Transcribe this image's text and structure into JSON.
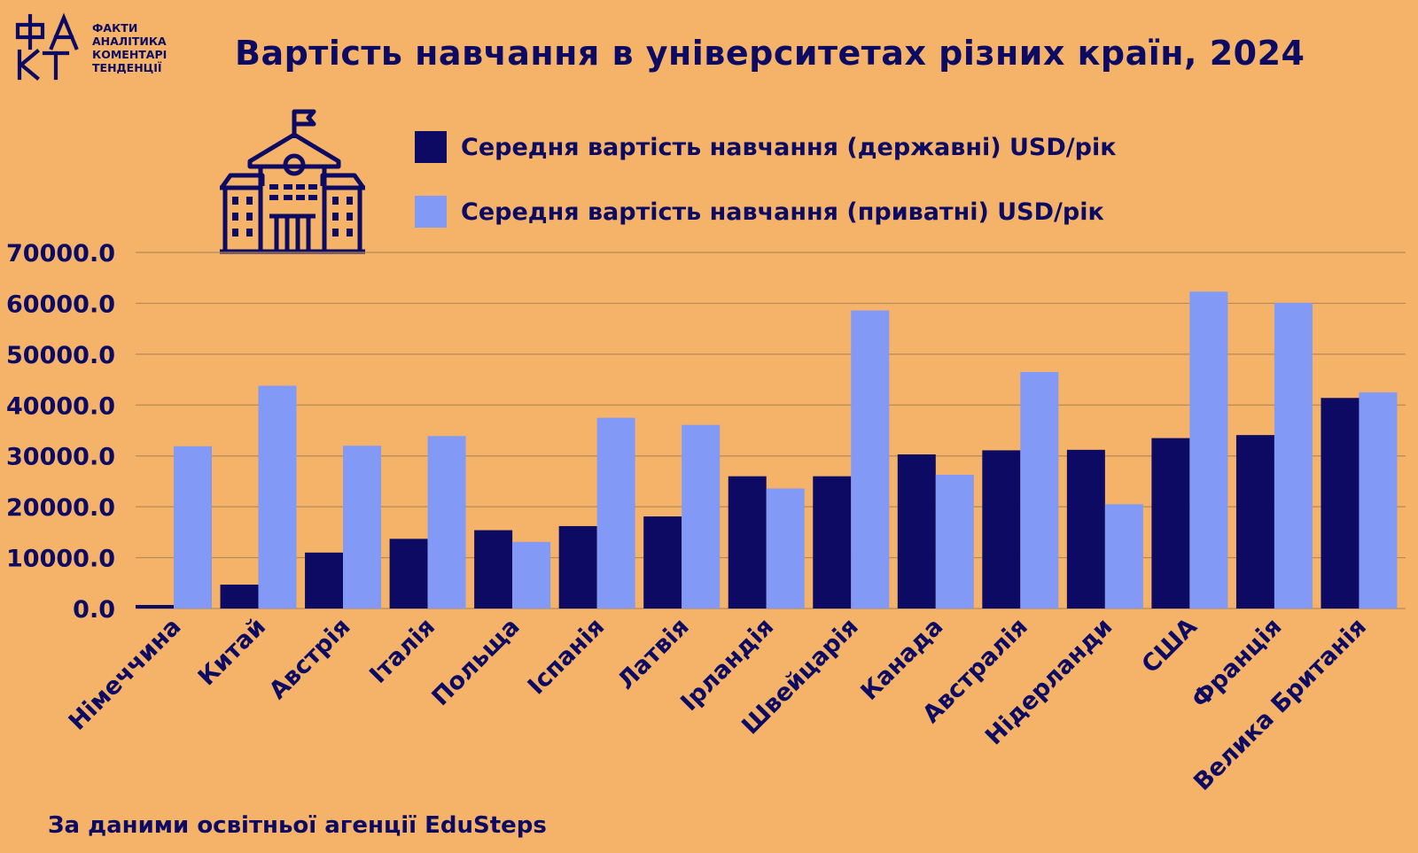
{
  "logo": {
    "mark": "ФАКТ",
    "lines": [
      "ФАКТИ",
      "АНАЛІТИКА",
      "КОМЕНТАРІ",
      "ТЕНДЕНЦІЇ"
    ]
  },
  "header": {
    "title": "Вартість навчання в університетах різних країн, 2024"
  },
  "icons": {
    "school": "school-building-icon"
  },
  "colors": {
    "background": "#F4B368",
    "public": "#0C0A63",
    "private": "#8299F5",
    "text": "#0C0A63",
    "grid": "#B58A59"
  },
  "source": "За даними освітньої агенції EduSteps",
  "chart_data": {
    "type": "bar",
    "title": "Вартість навчання в університетах різних країн, 2024",
    "xlabel": "",
    "ylabel": "",
    "ylim": [
      0,
      70000
    ],
    "yticks": [
      "0.0",
      "10000.0",
      "20000.0",
      "30000.0",
      "40000.0",
      "50000.0",
      "60000.0",
      "70000.0"
    ],
    "grid": true,
    "legend_position": "top",
    "categories": [
      "Німеччина",
      "Китай",
      "Австрія",
      "Італія",
      "Польща",
      "Іспанія",
      "Латвія",
      "Ірландія",
      "Швейцарія",
      "Канада",
      "Австралія",
      "Нідерланди",
      "США",
      "Франція",
      "Велика Британія"
    ],
    "series": [
      {
        "name": "Середня вартість навчання (державні) USD/рік",
        "color": "#0C0A63",
        "values": [
          700,
          4700,
          11000,
          13700,
          15400,
          16200,
          18100,
          26000,
          26000,
          30300,
          31100,
          31200,
          33500,
          34100,
          41400
        ]
      },
      {
        "name": "Середня вартість навчання (приватні) USD/рік",
        "color": "#8299F5",
        "values": [
          31900,
          43800,
          32000,
          33900,
          13100,
          37500,
          36100,
          23600,
          58600,
          26300,
          46500,
          20500,
          62300,
          60100,
          42500
        ]
      }
    ]
  }
}
